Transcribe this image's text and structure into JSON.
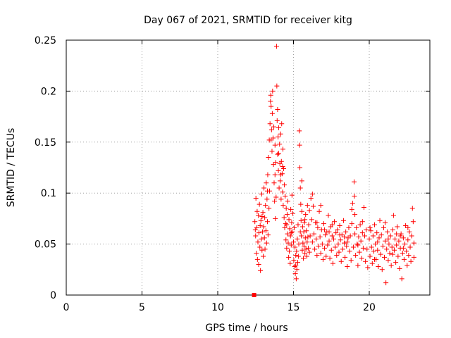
{
  "chart_data": {
    "type": "scatter",
    "title": "Day 067 of 2021, SRMTID for receiver kitg",
    "xlabel": "GPS time / hours",
    "ylabel": "SRMTID / TECUs",
    "xlim": [
      0,
      24
    ],
    "ylim": [
      0,
      0.25
    ],
    "xticks": [
      0,
      5,
      10,
      15,
      20
    ],
    "xtick_labels": [
      "0",
      "5",
      "10",
      "15",
      "20"
    ],
    "yticks": [
      0,
      0.05,
      0.1,
      0.15,
      0.2,
      0.25
    ],
    "ytick_labels": [
      "0",
      "0.05",
      "0.1",
      "0.15",
      "0.2",
      "0.25"
    ],
    "grid": true,
    "marker": "+",
    "color": "#ff0000",
    "start_marker": {
      "x": 12.4,
      "y": 0
    },
    "points": [
      [
        12.45,
        0.072
      ],
      [
        12.5,
        0.058
      ],
      [
        12.52,
        0.095
      ],
      [
        12.55,
        0.041
      ],
      [
        12.58,
        0.066
      ],
      [
        12.6,
        0.082
      ],
      [
        12.62,
        0.035
      ],
      [
        12.65,
        0.052
      ],
      [
        12.68,
        0.078
      ],
      [
        12.7,
        0.03
      ],
      [
        12.72,
        0.061
      ],
      [
        12.75,
        0.089
      ],
      [
        12.78,
        0.047
      ],
      [
        12.8,
        0.068
      ],
      [
        12.82,
        0.024
      ],
      [
        12.85,
        0.073
      ],
      [
        12.88,
        0.055
      ],
      [
        12.9,
        0.099
      ],
      [
        12.92,
        0.044
      ],
      [
        12.95,
        0.062
      ],
      [
        12.98,
        0.081
      ],
      [
        13.0,
        0.038
      ],
      [
        13.02,
        0.067
      ],
      [
        13.05,
        0.105
      ],
      [
        13.08,
        0.056
      ],
      [
        13.1,
        0.076
      ],
      [
        13.12,
        0.045
      ],
      [
        13.15,
        0.088
      ],
      [
        13.18,
        0.063
      ],
      [
        13.2,
        0.11
      ],
      [
        13.22,
        0.051
      ],
      [
        13.25,
        0.094
      ],
      [
        13.28,
        0.072
      ],
      [
        13.3,
        0.118
      ],
      [
        13.32,
        0.059
      ],
      [
        13.35,
        0.135
      ],
      [
        13.38,
        0.085
      ],
      [
        13.4,
        0.152
      ],
      [
        13.42,
        0.102
      ],
      [
        13.45,
        0.168
      ],
      [
        13.48,
        0.19
      ],
      [
        13.5,
        0.196
      ],
      [
        13.52,
        0.185
      ],
      [
        13.55,
        0.162
      ],
      [
        13.58,
        0.141
      ],
      [
        13.6,
        0.178
      ],
      [
        13.62,
        0.2
      ],
      [
        13.65,
        0.154
      ],
      [
        13.68,
        0.128
      ],
      [
        13.7,
        0.165
      ],
      [
        13.72,
        0.11
      ],
      [
        13.75,
        0.092
      ],
      [
        13.78,
        0.147
      ],
      [
        13.8,
        0.075
      ],
      [
        13.82,
        0.13
      ],
      [
        13.85,
        0.096
      ],
      [
        13.88,
        0.244
      ],
      [
        13.9,
        0.205
      ],
      [
        13.92,
        0.171
      ],
      [
        13.95,
        0.138
      ],
      [
        13.98,
        0.155
      ],
      [
        14.0,
        0.122
      ],
      [
        14.02,
        0.164
      ],
      [
        14.05,
        0.105
      ],
      [
        14.08,
        0.148
      ],
      [
        14.1,
        0.129
      ],
      [
        14.12,
        0.112
      ],
      [
        14.15,
        0.158
      ],
      [
        14.18,
        0.094
      ],
      [
        14.2,
        0.131
      ],
      [
        14.22,
        0.168
      ],
      [
        14.25,
        0.119
      ],
      [
        14.28,
        0.101
      ],
      [
        14.3,
        0.143
      ],
      [
        14.32,
        0.088
      ],
      [
        14.35,
        0.124
      ],
      [
        14.38,
        0.076
      ],
      [
        14.4,
        0.108
      ],
      [
        14.42,
        0.066
      ],
      [
        14.45,
        0.097
      ],
      [
        14.48,
        0.07
      ],
      [
        14.5,
        0.054
      ],
      [
        14.52,
        0.085
      ],
      [
        14.55,
        0.046
      ],
      [
        14.58,
        0.079
      ],
      [
        14.6,
        0.06
      ],
      [
        14.62,
        0.092
      ],
      [
        14.65,
        0.051
      ],
      [
        14.68,
        0.037
      ],
      [
        14.7,
        0.074
      ],
      [
        14.72,
        0.043
      ],
      [
        14.75,
        0.065
      ],
      [
        14.78,
        0.031
      ],
      [
        14.8,
        0.058
      ],
      [
        14.82,
        0.084
      ],
      [
        14.85,
        0.049
      ],
      [
        14.88,
        0.071
      ],
      [
        14.9,
        0.098
      ],
      [
        14.92,
        0.062
      ],
      [
        14.95,
        0.08
      ],
      [
        15.0,
        0.052
      ],
      [
        15.02,
        0.034
      ],
      [
        15.05,
        0.066
      ],
      [
        15.08,
        0.028
      ],
      [
        15.1,
        0.047
      ],
      [
        15.12,
        0.021
      ],
      [
        15.15,
        0.039
      ],
      [
        15.18,
        0.016
      ],
      [
        15.2,
        0.043
      ],
      [
        15.22,
        0.025
      ],
      [
        15.25,
        0.055
      ],
      [
        15.28,
        0.032
      ],
      [
        15.3,
        0.069
      ],
      [
        15.32,
        0.038
      ],
      [
        15.35,
        0.05
      ],
      [
        15.38,
        0.161
      ],
      [
        15.4,
        0.147
      ],
      [
        15.42,
        0.125
      ],
      [
        15.45,
        0.105
      ],
      [
        15.48,
        0.089
      ],
      [
        15.5,
        0.073
      ],
      [
        15.52,
        0.058
      ],
      [
        15.55,
        0.082
      ],
      [
        15.58,
        0.044
      ],
      [
        15.6,
        0.067
      ],
      [
        15.62,
        0.051
      ],
      [
        15.65,
        0.036
      ],
      [
        15.68,
        0.062
      ],
      [
        15.7,
        0.048
      ],
      [
        15.72,
        0.071
      ],
      [
        15.75,
        0.041
      ],
      [
        15.78,
        0.056
      ],
      [
        15.8,
        0.079
      ],
      [
        15.82,
        0.045
      ],
      [
        15.85,
        0.063
      ],
      [
        15.88,
        0.038
      ],
      [
        15.9,
        0.052
      ],
      [
        15.92,
        0.088
      ],
      [
        15.95,
        0.057
      ],
      [
        15.98,
        0.046
      ],
      [
        16.0,
        0.069
      ],
      [
        16.05,
        0.042
      ],
      [
        16.1,
        0.058
      ],
      [
        16.15,
        0.095
      ],
      [
        16.2,
        0.074
      ],
      [
        16.25,
        0.052
      ],
      [
        16.3,
        0.087
      ],
      [
        16.35,
        0.06
      ],
      [
        16.4,
        0.045
      ],
      [
        16.45,
        0.071
      ],
      [
        16.5,
        0.055
      ],
      [
        16.55,
        0.039
      ],
      [
        16.6,
        0.066
      ],
      [
        16.65,
        0.048
      ],
      [
        16.7,
        0.082
      ],
      [
        16.75,
        0.057
      ],
      [
        16.8,
        0.041
      ],
      [
        16.85,
        0.064
      ],
      [
        16.9,
        0.05
      ],
      [
        16.95,
        0.035
      ],
      [
        17.0,
        0.07
      ],
      [
        17.05,
        0.046
      ],
      [
        17.1,
        0.059
      ],
      [
        17.15,
        0.038
      ],
      [
        17.2,
        0.062
      ],
      [
        17.25,
        0.049
      ],
      [
        17.3,
        0.078
      ],
      [
        17.35,
        0.053
      ],
      [
        17.4,
        0.036
      ],
      [
        17.45,
        0.067
      ],
      [
        17.5,
        0.044
      ],
      [
        17.55,
        0.058
      ],
      [
        17.6,
        0.031
      ],
      [
        17.65,
        0.055
      ],
      [
        17.7,
        0.072
      ],
      [
        17.75,
        0.047
      ],
      [
        17.8,
        0.061
      ],
      [
        17.85,
        0.039
      ],
      [
        17.9,
        0.064
      ],
      [
        17.95,
        0.05
      ],
      [
        18.0,
        0.042
      ],
      [
        18.05,
        0.068
      ],
      [
        18.1,
        0.054
      ],
      [
        18.15,
        0.033
      ],
      [
        18.2,
        0.059
      ],
      [
        18.25,
        0.045
      ],
      [
        18.3,
        0.073
      ],
      [
        18.35,
        0.051
      ],
      [
        18.4,
        0.037
      ],
      [
        18.45,
        0.062
      ],
      [
        18.5,
        0.048
      ],
      [
        18.55,
        0.028
      ],
      [
        18.6,
        0.056
      ],
      [
        18.65,
        0.066
      ],
      [
        18.7,
        0.043
      ],
      [
        18.75,
        0.058
      ],
      [
        18.8,
        0.034
      ],
      [
        18.85,
        0.07
      ],
      [
        18.9,
        0.09
      ],
      [
        18.95,
        0.047
      ],
      [
        19.0,
        0.111
      ],
      [
        19.02,
        0.097
      ],
      [
        19.05,
        0.06
      ],
      [
        19.1,
        0.039
      ],
      [
        19.15,
        0.066
      ],
      [
        19.2,
        0.05
      ],
      [
        19.25,
        0.029
      ],
      [
        19.3,
        0.057
      ],
      [
        19.35,
        0.042
      ],
      [
        19.4,
        0.069
      ],
      [
        19.45,
        0.053
      ],
      [
        19.5,
        0.036
      ],
      [
        19.55,
        0.061
      ],
      [
        19.6,
        0.046
      ],
      [
        19.65,
        0.086
      ],
      [
        19.7,
        0.058
      ],
      [
        19.75,
        0.033
      ],
      [
        19.8,
        0.064
      ],
      [
        19.85,
        0.045
      ],
      [
        19.9,
        0.027
      ],
      [
        20.0,
        0.055
      ],
      [
        20.05,
        0.038
      ],
      [
        20.1,
        0.063
      ],
      [
        20.15,
        0.047
      ],
      [
        20.2,
        0.031
      ],
      [
        20.25,
        0.058
      ],
      [
        20.3,
        0.043
      ],
      [
        20.35,
        0.069
      ],
      [
        20.4,
        0.05
      ],
      [
        20.45,
        0.035
      ],
      [
        20.5,
        0.061
      ],
      [
        20.55,
        0.044
      ],
      [
        20.6,
        0.028
      ],
      [
        20.65,
        0.056
      ],
      [
        20.7,
        0.073
      ],
      [
        20.75,
        0.04
      ],
      [
        20.8,
        0.059
      ],
      [
        20.85,
        0.025
      ],
      [
        20.9,
        0.048
      ],
      [
        20.95,
        0.066
      ],
      [
        21.0,
        0.037
      ],
      [
        21.05,
        0.053
      ],
      [
        21.1,
        0.012
      ],
      [
        21.15,
        0.045
      ],
      [
        21.2,
        0.062
      ],
      [
        21.25,
        0.034
      ],
      [
        21.3,
        0.05
      ],
      [
        21.35,
        0.041
      ],
      [
        21.4,
        0.058
      ],
      [
        21.45,
        0.029
      ],
      [
        21.5,
        0.047
      ],
      [
        21.55,
        0.064
      ],
      [
        21.6,
        0.078
      ],
      [
        21.65,
        0.044
      ],
      [
        21.7,
        0.055
      ],
      [
        21.75,
        0.032
      ],
      [
        21.8,
        0.049
      ],
      [
        21.85,
        0.067
      ],
      [
        21.9,
        0.038
      ],
      [
        21.95,
        0.053
      ],
      [
        22.0,
        0.026
      ],
      [
        22.05,
        0.046
      ],
      [
        22.1,
        0.06
      ],
      [
        22.15,
        0.016
      ],
      [
        22.2,
        0.041
      ],
      [
        22.25,
        0.056
      ],
      [
        22.3,
        0.035
      ],
      [
        22.35,
        0.05
      ],
      [
        22.4,
        0.068
      ],
      [
        22.45,
        0.043
      ],
      [
        22.5,
        0.029
      ],
      [
        22.55,
        0.054
      ],
      [
        22.6,
        0.039
      ],
      [
        22.65,
        0.062
      ],
      [
        22.7,
        0.047
      ],
      [
        22.75,
        0.033
      ],
      [
        22.8,
        0.058
      ],
      [
        22.85,
        0.085
      ],
      [
        22.9,
        0.072
      ],
      [
        22.95,
        0.051
      ],
      [
        12.48,
        0.064
      ],
      [
        12.92,
        0.077
      ],
      [
        13.28,
        0.102
      ],
      [
        13.52,
        0.152
      ],
      [
        13.78,
        0.118
      ],
      [
        14.02,
        0.139
      ],
      [
        14.28,
        0.126
      ],
      [
        14.55,
        0.069
      ],
      [
        14.85,
        0.061
      ],
      [
        15.15,
        0.029
      ],
      [
        15.45,
        0.062
      ],
      [
        15.75,
        0.074
      ],
      [
        16.05,
        0.083
      ],
      [
        16.55,
        0.071
      ],
      [
        17.05,
        0.064
      ],
      [
        17.55,
        0.069
      ],
      [
        18.05,
        0.059
      ],
      [
        18.55,
        0.052
      ],
      [
        19.05,
        0.079
      ],
      [
        19.55,
        0.072
      ],
      [
        20.05,
        0.066
      ],
      [
        20.55,
        0.052
      ],
      [
        21.05,
        0.071
      ],
      [
        21.55,
        0.04
      ],
      [
        22.05,
        0.058
      ],
      [
        22.55,
        0.066
      ],
      [
        22.95,
        0.037
      ],
      [
        16.25,
        0.099
      ],
      [
        17.35,
        0.062
      ],
      [
        18.35,
        0.057
      ],
      [
        19.25,
        0.049
      ],
      [
        20.35,
        0.035
      ],
      [
        21.25,
        0.055
      ],
      [
        22.25,
        0.046
      ],
      [
        14.15,
        0.118
      ],
      [
        13.95,
        0.182
      ],
      [
        15.55,
        0.112
      ],
      [
        16.8,
        0.088
      ],
      [
        18.85,
        0.084
      ],
      [
        21.8,
        0.06
      ]
    ]
  }
}
